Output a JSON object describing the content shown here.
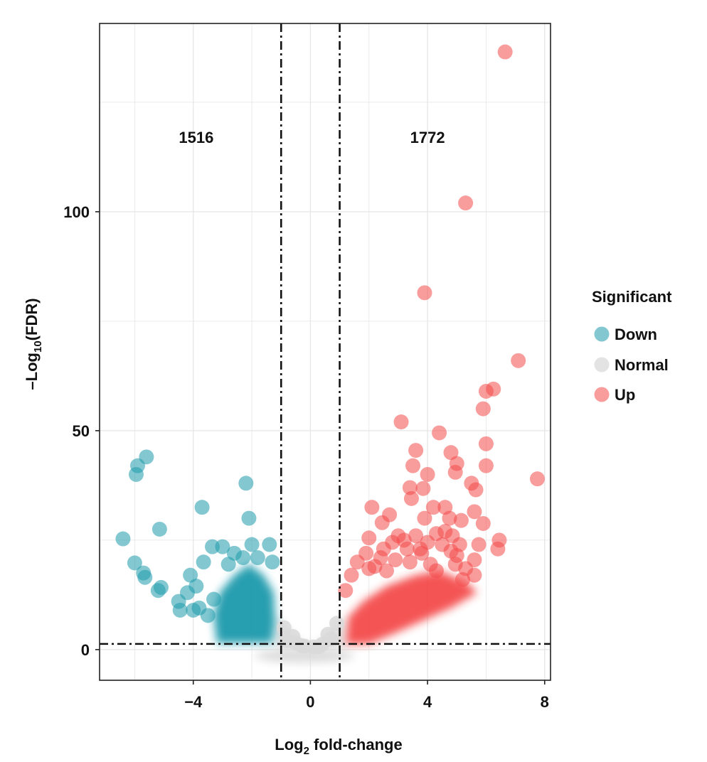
{
  "chart_data": {
    "type": "scatter",
    "subtype": "volcano",
    "xlabel_main": "Log",
    "xlabel_sub": "2",
    "xlabel_rest": " fold-change",
    "ylabel_main": "–Log",
    "ylabel_sub": "10",
    "ylabel_rest": "(FDR)",
    "xlim": [
      -7.2,
      8.2
    ],
    "ylim": [
      -7,
      143
    ],
    "x_ticks": [
      -4,
      0,
      4,
      8
    ],
    "x_tick_labels": [
      "−4",
      "0",
      "4",
      "8"
    ],
    "y_ticks": [
      0,
      50,
      100
    ],
    "y_tick_labels": [
      "0",
      "50",
      "100"
    ],
    "grid": true,
    "fc_threshold": [
      -1,
      1
    ],
    "fdr_threshold": 1.3,
    "annotations": [
      {
        "label": "1516",
        "x": -3.9,
        "y": 117
      },
      {
        "label": "1772",
        "x": 4.0,
        "y": 117
      }
    ],
    "legend": {
      "title": "Significant",
      "position": "right",
      "entries": [
        {
          "label": "Down",
          "color": "#1e9aac"
        },
        {
          "label": "Normal",
          "color": "#d9d9d9"
        },
        {
          "label": "Up",
          "color": "#f44b4b"
        }
      ]
    },
    "series": [
      {
        "name": "Down",
        "color": "#1e9aac",
        "count": 1516,
        "points": [
          [
            -6.4,
            25.3
          ],
          [
            -6.0,
            19.8
          ],
          [
            -5.7,
            17.5
          ],
          [
            -5.65,
            16.5
          ],
          [
            -5.95,
            40.0
          ],
          [
            -5.9,
            42.0
          ],
          [
            -5.6,
            44.0
          ],
          [
            -5.15,
            27.5
          ],
          [
            -5.2,
            13.5
          ],
          [
            -5.1,
            14.2
          ],
          [
            -4.5,
            11.0
          ],
          [
            -4.45,
            9.0
          ],
          [
            -4.2,
            13.0
          ],
          [
            -4.1,
            17.0
          ],
          [
            -3.9,
            14.5
          ],
          [
            -3.7,
            32.5
          ],
          [
            -3.65,
            20.0
          ],
          [
            -3.35,
            23.5
          ],
          [
            -3.0,
            23.5
          ],
          [
            -2.8,
            19.5
          ],
          [
            -2.6,
            22.0
          ],
          [
            -2.3,
            21.0
          ],
          [
            -2.2,
            38.0
          ],
          [
            -2.1,
            30.0
          ],
          [
            -2.0,
            24.0
          ],
          [
            -1.8,
            21.0
          ],
          [
            -1.4,
            24.0
          ],
          [
            -1.3,
            20.0
          ],
          [
            -3.8,
            9.5
          ],
          [
            -3.5,
            7.8
          ],
          [
            -3.3,
            11.5
          ],
          [
            -4.0,
            9.0
          ]
        ]
      },
      {
        "name": "Normal",
        "color": "#d9d9d9",
        "count": null,
        "points": [
          [
            -0.8,
            2.0
          ],
          [
            -0.5,
            1.5
          ],
          [
            -0.2,
            0.8
          ],
          [
            0.1,
            0.6
          ],
          [
            0.4,
            1.2
          ],
          [
            0.7,
            2.4
          ],
          [
            -0.9,
            5.0
          ],
          [
            -0.6,
            3.0
          ],
          [
            0.6,
            3.5
          ],
          [
            0.9,
            6.0
          ],
          [
            -0.3,
            0.9
          ],
          [
            0.3,
            0.7
          ]
        ]
      },
      {
        "name": "Up",
        "color": "#f44b4b",
        "count": 1772,
        "points": [
          [
            6.65,
            136.5
          ],
          [
            5.3,
            102.0
          ],
          [
            3.9,
            81.5
          ],
          [
            7.1,
            66.0
          ],
          [
            6.25,
            59.5
          ],
          [
            6.0,
            59.0
          ],
          [
            5.9,
            55.0
          ],
          [
            3.1,
            52.0
          ],
          [
            4.4,
            49.5
          ],
          [
            6.0,
            47.0
          ],
          [
            3.6,
            45.5
          ],
          [
            4.8,
            45.0
          ],
          [
            5.0,
            42.5
          ],
          [
            3.5,
            42.0
          ],
          [
            6.0,
            42.0
          ],
          [
            4.0,
            40.0
          ],
          [
            4.95,
            40.5
          ],
          [
            7.75,
            39.0
          ],
          [
            5.5,
            38.0
          ],
          [
            3.4,
            37.0
          ],
          [
            3.85,
            36.8
          ],
          [
            5.65,
            36.5
          ],
          [
            3.45,
            34.5
          ],
          [
            4.2,
            32.5
          ],
          [
            4.6,
            32.5
          ],
          [
            2.1,
            32.5
          ],
          [
            2.7,
            30.8
          ],
          [
            4.75,
            30.0
          ],
          [
            3.9,
            30.0
          ],
          [
            5.15,
            29.5
          ],
          [
            2.45,
            29.0
          ],
          [
            5.9,
            28.8
          ],
          [
            5.6,
            31.5
          ],
          [
            4.85,
            26.0
          ],
          [
            3.0,
            26.0
          ],
          [
            3.6,
            26.0
          ],
          [
            2.0,
            25.5
          ],
          [
            3.2,
            25.0
          ],
          [
            6.45,
            25.0
          ],
          [
            6.4,
            23.0
          ],
          [
            2.8,
            24.5
          ],
          [
            4.0,
            24.5
          ],
          [
            4.5,
            24.0
          ],
          [
            5.75,
            24.0
          ],
          [
            3.75,
            23.0
          ],
          [
            2.5,
            23.0
          ],
          [
            1.9,
            22.0
          ],
          [
            4.8,
            22.5
          ],
          [
            5.0,
            21.5
          ],
          [
            2.4,
            21.0
          ],
          [
            3.4,
            20.0
          ],
          [
            4.1,
            19.5
          ],
          [
            4.95,
            19.5
          ],
          [
            5.6,
            20.5
          ],
          [
            1.4,
            17.0
          ],
          [
            2.0,
            18.5
          ],
          [
            2.6,
            18.0
          ],
          [
            5.6,
            17.0
          ],
          [
            5.2,
            16.0
          ],
          [
            1.2,
            13.5
          ],
          [
            3.8,
            22.0
          ],
          [
            4.3,
            26.5
          ],
          [
            4.6,
            27.0
          ],
          [
            2.9,
            20.5
          ],
          [
            3.3,
            23.0
          ],
          [
            5.3,
            18.5
          ],
          [
            1.6,
            20.0
          ],
          [
            2.2,
            19.0
          ],
          [
            4.3,
            18.0
          ],
          [
            5.1,
            24.0
          ]
        ]
      }
    ]
  }
}
